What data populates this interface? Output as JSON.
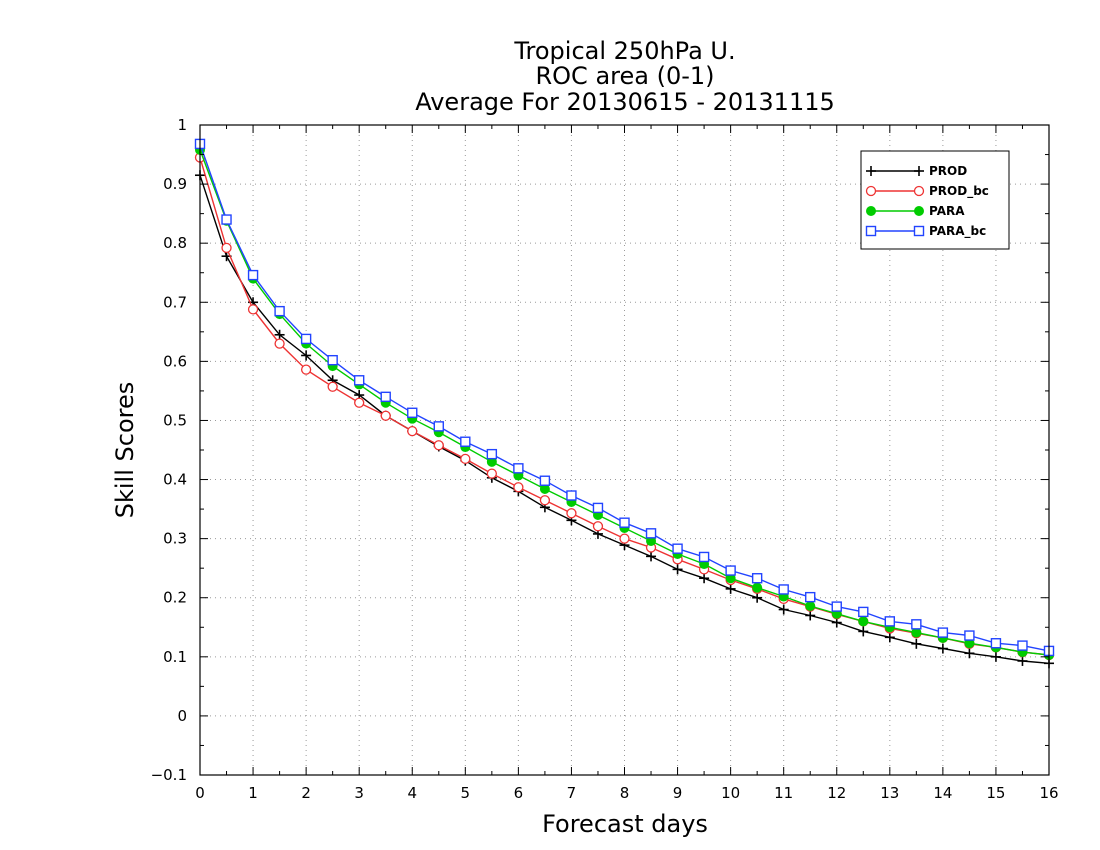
{
  "chart_data": {
    "type": "line",
    "title": [
      "Tropical 250hPa U.",
      "ROC area (0-1)",
      "Average For 20130615 - 20131115"
    ],
    "xlabel": "Forecast days",
    "ylabel": "Skill Scores",
    "xlim": [
      0,
      16
    ],
    "ylim": [
      -0.1,
      1
    ],
    "xticks": [
      0,
      1,
      2,
      3,
      4,
      5,
      6,
      7,
      8,
      9,
      10,
      11,
      12,
      13,
      14,
      15,
      16
    ],
    "xtick_labels": [
      "0",
      "1",
      "2",
      "3",
      "4",
      "5",
      "6",
      "7",
      "8",
      "9",
      "10",
      "11",
      "12",
      "13",
      "14",
      "15",
      "16"
    ],
    "yticks": [
      -0.1,
      0,
      0.1,
      0.2,
      0.3,
      0.4,
      0.5,
      0.6,
      0.7,
      0.8,
      0.9,
      1
    ],
    "ytick_labels": [
      "−0.1",
      "0",
      "0.1",
      "0.2",
      "0.3",
      "0.4",
      "0.5",
      "0.6",
      "0.7",
      "0.8",
      "0.9",
      "1"
    ],
    "grid": true,
    "legend_position": "top-right",
    "x": [
      0,
      0.5,
      1,
      1.5,
      2,
      2.5,
      3,
      3.5,
      4,
      4.5,
      5,
      5.5,
      6,
      6.5,
      7,
      7.5,
      8,
      8.5,
      9,
      9.5,
      10,
      10.5,
      11,
      11.5,
      12,
      12.5,
      13,
      13.5,
      14,
      14.5,
      15,
      15.5,
      16
    ],
    "series": [
      {
        "name": "PROD",
        "color": "#000000",
        "marker": "plus",
        "values": [
          0.915,
          0.778,
          0.7,
          0.645,
          0.61,
          0.568,
          0.543,
          0.508,
          0.482,
          0.456,
          0.432,
          0.403,
          0.38,
          0.353,
          0.331,
          0.308,
          0.289,
          0.27,
          0.248,
          0.233,
          0.215,
          0.2,
          0.18,
          0.17,
          0.158,
          0.143,
          0.133,
          0.122,
          0.114,
          0.106,
          0.1,
          0.093,
          0.089
        ]
      },
      {
        "name": "PROD_bc",
        "color": "#ee3333",
        "marker": "open-circle",
        "values": [
          0.945,
          0.792,
          0.688,
          0.63,
          0.586,
          0.557,
          0.53,
          0.508,
          0.482,
          0.458,
          0.435,
          0.41,
          0.387,
          0.365,
          0.343,
          0.321,
          0.3,
          0.285,
          0.265,
          0.248,
          0.23,
          0.215,
          0.198,
          0.185,
          0.172,
          0.16,
          0.148,
          0.14,
          0.132,
          0.122,
          0.116,
          0.108,
          0.103
        ]
      },
      {
        "name": "PARA",
        "color": "#00cc00",
        "marker": "filled-circle",
        "values": [
          0.958,
          0.838,
          0.74,
          0.68,
          0.63,
          0.592,
          0.561,
          0.53,
          0.503,
          0.48,
          0.455,
          0.43,
          0.407,
          0.384,
          0.362,
          0.34,
          0.318,
          0.296,
          0.274,
          0.257,
          0.233,
          0.217,
          0.202,
          0.186,
          0.173,
          0.16,
          0.15,
          0.141,
          0.132,
          0.123,
          0.116,
          0.108,
          0.103
        ]
      },
      {
        "name": "PARA_bc",
        "color": "#2244ff",
        "marker": "open-square",
        "values": [
          0.968,
          0.84,
          0.746,
          0.685,
          0.638,
          0.602,
          0.568,
          0.54,
          0.513,
          0.49,
          0.464,
          0.443,
          0.419,
          0.398,
          0.373,
          0.352,
          0.327,
          0.309,
          0.283,
          0.269,
          0.246,
          0.233,
          0.214,
          0.201,
          0.185,
          0.176,
          0.16,
          0.155,
          0.141,
          0.136,
          0.123,
          0.119,
          0.11
        ]
      }
    ]
  }
}
